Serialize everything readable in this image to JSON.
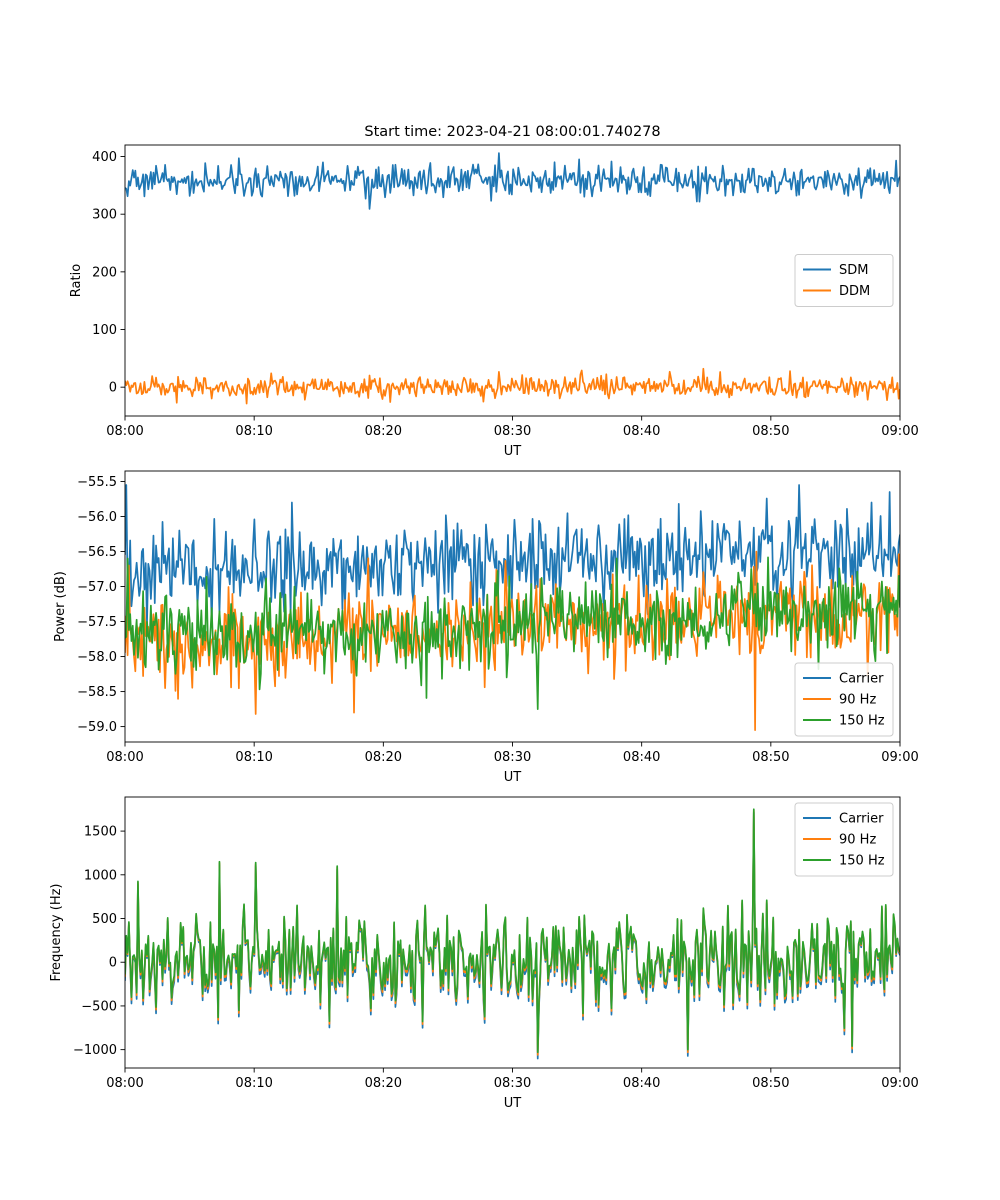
{
  "figure": {
    "title": "Start time: 2023-04-21 08:00:01.740278"
  },
  "colors": {
    "blue": "#1f77b4",
    "orange": "#ff7f0e",
    "green": "#2ca02c"
  },
  "chart_data": [
    {
      "type": "line",
      "title": "Start time: 2023-04-21 08:00:01.740278",
      "xlabel": "UT",
      "ylabel": "Ratio",
      "xlim": [
        0,
        60
      ],
      "ylim": [
        -50,
        420
      ],
      "xticks": [
        0,
        10,
        20,
        30,
        40,
        50,
        60
      ],
      "xtick_labels": [
        "08:00",
        "08:10",
        "08:20",
        "08:30",
        "08:40",
        "08:50",
        "09:00"
      ],
      "yticks": [
        0,
        100,
        200,
        300,
        400
      ],
      "ytick_labels": [
        "0",
        "100",
        "200",
        "300",
        "400"
      ],
      "legend": "center-right",
      "series": [
        {
          "name": "SDM",
          "color": "#1f77b4",
          "mean": 358,
          "amp": 13,
          "peaks": [
            [
              8.8,
              397
            ],
            [
              15.3,
              390
            ],
            [
              35.2,
              395
            ],
            [
              44.3,
              322
            ],
            [
              56.0,
              332
            ]
          ]
        },
        {
          "name": "DDM",
          "color": "#ff7f0e",
          "mean": 0,
          "amp": 9,
          "peaks": [
            [
              4.0,
              -27
            ],
            [
              35.4,
              29
            ],
            [
              44.8,
              32
            ],
            [
              59.9,
              -20
            ]
          ]
        }
      ]
    },
    {
      "type": "line",
      "title": "",
      "xlabel": "UT",
      "ylabel": "Power (dB)",
      "xlim": [
        0,
        60
      ],
      "ylim": [
        -59.22,
        -55.35
      ],
      "xticks": [
        0,
        10,
        20,
        30,
        40,
        50,
        60
      ],
      "xtick_labels": [
        "08:00",
        "08:10",
        "08:20",
        "08:30",
        "08:40",
        "08:50",
        "09:00"
      ],
      "yticks": [
        -59.0,
        -58.5,
        -58.0,
        -57.5,
        -57.0,
        -56.5,
        -56.0,
        -55.5
      ],
      "ytick_labels": [
        "−59.0",
        "−58.5",
        "−58.0",
        "−57.5",
        "−57.0",
        "−56.5",
        "−56.0",
        "−55.5"
      ],
      "legend": "lower-right",
      "series": [
        {
          "name": "Carrier",
          "color": "#1f77b4",
          "mean_start": -56.8,
          "mean_end": -56.5,
          "amp": 0.3,
          "peaks": [
            [
              0.1,
              -55.55
            ],
            [
              12.9,
              -55.8
            ],
            [
              52.2,
              -55.55
            ],
            [
              59.2,
              -55.65
            ],
            [
              1.2,
              -57.0
            ]
          ]
        },
        {
          "name": "90 Hz",
          "color": "#ff7f0e",
          "mean_start": -57.8,
          "mean_end": -57.35,
          "amp": 0.32,
          "peaks": [
            [
              10.1,
              -58.82
            ],
            [
              17.7,
              -58.8
            ],
            [
              48.8,
              -59.05
            ],
            [
              0.3,
              -56.7
            ]
          ]
        },
        {
          "name": "150 Hz",
          "color": "#2ca02c",
          "mean_start": -57.75,
          "mean_end": -57.35,
          "amp": 0.3,
          "peaks": [
            [
              32.0,
              -58.75
            ],
            [
              47.5,
              -56.8
            ],
            [
              0.2,
              -56.6
            ],
            [
              13.1,
              -57.0
            ]
          ]
        }
      ]
    },
    {
      "type": "line",
      "title": "",
      "xlabel": "UT",
      "ylabel": "Frequency (Hz)",
      "xlim": [
        0,
        60
      ],
      "ylim": [
        -1210,
        1890
      ],
      "xticks": [
        0,
        10,
        20,
        30,
        40,
        50,
        60
      ],
      "xtick_labels": [
        "08:00",
        "08:10",
        "08:20",
        "08:30",
        "08:40",
        "08:50",
        "09:00"
      ],
      "yticks": [
        -1000,
        -500,
        0,
        500,
        1000,
        1500
      ],
      "ytick_labels": [
        "−1000",
        "−500",
        "0",
        "500",
        "1000",
        "1500"
      ],
      "legend": "upper-right",
      "series": [
        {
          "name": "Carrier",
          "color": "#1f77b4",
          "offset": -60
        },
        {
          "name": "90 Hz",
          "color": "#ff7f0e",
          "offset": -25
        },
        {
          "name": "150 Hz",
          "color": "#2ca02c",
          "offset": 0
        }
      ],
      "base": {
        "mean": 60,
        "amp": 250,
        "peaks": [
          [
            48.7,
            1750
          ],
          [
            7.3,
            1150
          ],
          [
            10.1,
            1140
          ],
          [
            32.0,
            -1030
          ],
          [
            43.6,
            -1000
          ],
          [
            56.3,
            -960
          ],
          [
            16.4,
            1100
          ]
        ]
      }
    }
  ]
}
